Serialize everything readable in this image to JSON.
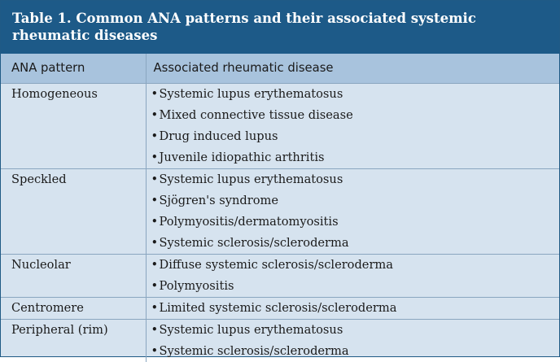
{
  "title": {
    "line1": "Table 1. Common ANA patterns and their associated systemic",
    "line2": "rheumatic diseases"
  },
  "headers": {
    "pattern": "ANA pattern",
    "disease": "Associated rheumatic disease"
  },
  "bullet": "•",
  "rows": [
    {
      "pattern": "Homogeneous",
      "diseases": [
        "Systemic lupus erythematosus",
        "Mixed connective tissue disease",
        "Drug induced lupus",
        "Juvenile idiopathic arthritis"
      ]
    },
    {
      "pattern": "Speckled",
      "diseases": [
        "Systemic lupus erythematosus",
        "Sjögren's syndrome",
        "Polymyositis/dermatomyositis",
        "Systemic sclerosis/scleroderma"
      ]
    },
    {
      "pattern": "Nucleolar",
      "diseases": [
        "Diffuse systemic sclerosis/scleroderma",
        "Polymyositis"
      ]
    },
    {
      "pattern": "Centromere",
      "diseases": [
        "Limited systemic sclerosis/scleroderma"
      ]
    },
    {
      "pattern": "Peripheral (rim)",
      "diseases": [
        "Systemic lupus erythematosus",
        "Systemic sclerosis/scleroderma"
      ]
    }
  ]
}
